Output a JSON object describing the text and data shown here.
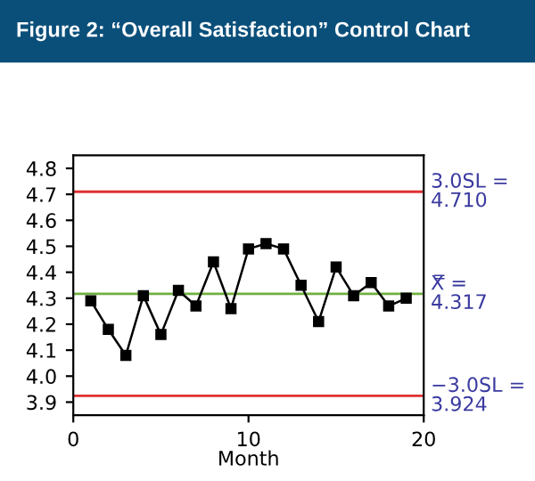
{
  "chart_data": {
    "type": "line",
    "title": "Figure 2: “Overall Satisfaction” Control Chart",
    "xlabel": "Month",
    "x": [
      1,
      2,
      3,
      4,
      5,
      6,
      7,
      8,
      9,
      10,
      11,
      12,
      13,
      14,
      15,
      16,
      17,
      18,
      19
    ],
    "series": [
      {
        "color": "#000000",
        "values": [
          4.29,
          4.18,
          4.08,
          4.31,
          4.16,
          4.33,
          4.27,
          4.44,
          4.26,
          4.49,
          4.51,
          4.49,
          4.35,
          4.21,
          4.42,
          4.31,
          4.36,
          4.27,
          4.3
        ]
      }
    ],
    "marker": "square",
    "line_style": "solid",
    "grid": false,
    "legend": false,
    "xlim": [
      0,
      20
    ],
    "xticks": [
      0,
      10,
      20
    ],
    "ylim": [
      3.85,
      4.85
    ],
    "yticks": [
      3.9,
      {
        "value": 4.0,
        "label": "4.0"
      },
      4.1,
      4.2,
      4.3,
      4.4,
      4.5,
      4.6,
      4.7,
      4.8
    ],
    "ref_lines": [
      {
        "axis": "y",
        "value": 4.71,
        "label": "3.0SL =\n4.710",
        "color": "#e03030"
      },
      {
        "axis": "y",
        "value": 4.317,
        "label": "X̿ =\n4.317",
        "color": "#70b040"
      },
      {
        "axis": "y",
        "value": 3.924,
        "label": "−3.0SL =\n3.924",
        "color": "#e03030"
      }
    ]
  }
}
